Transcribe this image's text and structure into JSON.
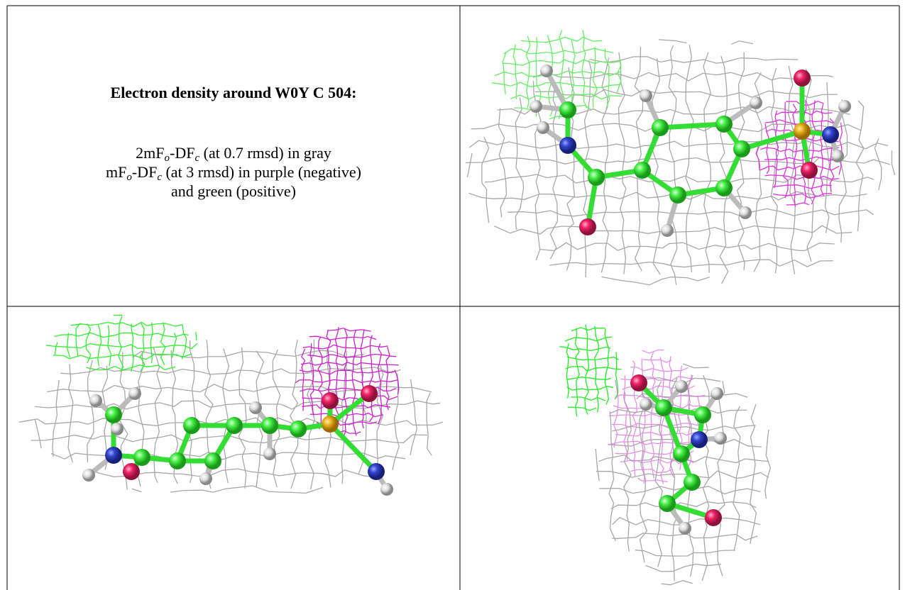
{
  "caption": {
    "title": "Electron density around W0Y C 504:",
    "lines": [
      [
        {
          "text": "2mF"
        },
        {
          "text": "o",
          "sub": true
        },
        {
          "text": "-DF"
        },
        {
          "text": "c",
          "sub": true
        },
        {
          "text": " (at 0.7 rmsd) in gray"
        }
      ],
      [
        {
          "text": "mF"
        },
        {
          "text": "o",
          "sub": true
        },
        {
          "text": "-DF"
        },
        {
          "text": "c",
          "sub": true
        },
        {
          "text": " (at 3 rmsd) in purple (negative)"
        }
      ],
      [
        {
          "text": "and green (positive)"
        }
      ]
    ]
  }
}
